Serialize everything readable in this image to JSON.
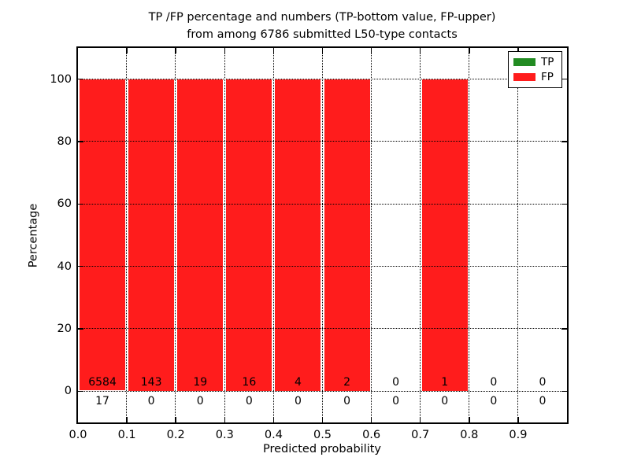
{
  "title": {
    "line1": "TP /FP percentage and numbers (TP-bottom value, FP-upper)",
    "line2": "from among 6786 submitted L50-type contacts"
  },
  "axes": {
    "xlabel": "Predicted probability",
    "ylabel": "Percentage"
  },
  "legend": {
    "position": "upper right",
    "items": [
      {
        "label": "TP",
        "color": "#228b22"
      },
      {
        "label": "FP",
        "color": "#ff1c1c"
      }
    ]
  },
  "chart_data": {
    "type": "bar",
    "stacked": true,
    "title": "TP /FP percentage and numbers (TP-bottom value, FP-upper) from among 6786 submitted L50-type contacts",
    "xlabel": "Predicted probability",
    "ylabel": "Percentage",
    "total_contacts": 6786,
    "bin_starts": [
      0.0,
      0.1,
      0.2,
      0.3,
      0.4,
      0.5,
      0.6,
      0.7,
      0.8,
      0.9
    ],
    "bin_width": 0.1,
    "series": [
      {
        "name": "TP",
        "color": "#228b22",
        "counts": [
          17,
          0,
          0,
          0,
          0,
          0,
          0,
          0,
          0,
          0
        ]
      },
      {
        "name": "FP",
        "color": "#ff1c1c",
        "counts": [
          6584,
          143,
          19,
          16,
          4,
          2,
          0,
          1,
          0,
          0
        ]
      }
    ],
    "bar_total_percent": [
      100,
      100,
      100,
      100,
      100,
      100,
      0,
      100,
      0,
      0
    ],
    "xticks": [
      "0.0",
      "0.1",
      "0.2",
      "0.3",
      "0.4",
      "0.5",
      "0.6",
      "0.7",
      "0.8",
      "0.9"
    ],
    "yticks": [
      0,
      20,
      40,
      60,
      80,
      100
    ],
    "xlim": [
      0.0,
      1.0
    ],
    "ylim": [
      -10,
      110
    ],
    "grid": true,
    "grid_style": "dotted",
    "legend_position": "upper right"
  }
}
